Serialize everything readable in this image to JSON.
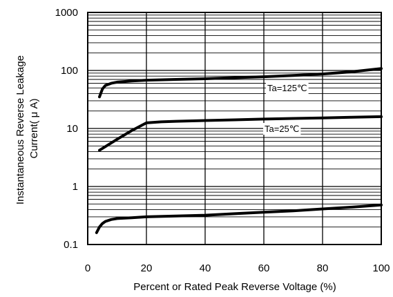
{
  "chart_data": {
    "type": "line",
    "title": "",
    "xlabel": "Percent or Rated Peak Reverse Voltage (%)",
    "ylabel_lines": [
      "Instantaneous Reverse Leakage",
      "Current( μ A)"
    ],
    "xlim": [
      0,
      100
    ],
    "ylim": [
      0.1,
      1000
    ],
    "yscale": "log",
    "grid": true,
    "x_ticks": [
      0,
      20,
      40,
      60,
      80,
      100
    ],
    "x_tick_labels": [
      "0",
      "20",
      "40",
      "60",
      "80",
      "100"
    ],
    "y_ticks": [
      0.1,
      1,
      10,
      100,
      1000
    ],
    "y_tick_labels": [
      "0.1",
      "1",
      "10",
      "100",
      "1000"
    ],
    "series": [
      {
        "name": "Ta=125℃",
        "x": [
          4,
          5,
          6,
          8,
          10,
          15,
          20,
          30,
          40,
          50,
          60,
          70,
          80,
          90,
          100
        ],
        "y": [
          35,
          48,
          55,
          60,
          63,
          66,
          68,
          70,
          72,
          75,
          78,
          82,
          87,
          95,
          108
        ]
      },
      {
        "name": "Ta=25℃",
        "x": [
          4,
          10,
          15,
          20,
          25,
          30,
          40,
          50,
          60,
          70,
          80,
          90,
          100
        ],
        "y": [
          4.2,
          6.5,
          9.2,
          12.5,
          13,
          13.3,
          13.7,
          14.1,
          14.5,
          14.9,
          15.2,
          15.6,
          16
        ]
      },
      {
        "name": "",
        "x": [
          3,
          4,
          5,
          6,
          8,
          10,
          15,
          20,
          30,
          40,
          50,
          60,
          70,
          80,
          90,
          100
        ],
        "y": [
          0.16,
          0.2,
          0.23,
          0.25,
          0.27,
          0.28,
          0.29,
          0.3,
          0.31,
          0.32,
          0.34,
          0.36,
          0.38,
          0.41,
          0.44,
          0.48
        ]
      }
    ],
    "annotations": [
      {
        "text": "Ta=125℃",
        "series": 0
      },
      {
        "text": "Ta=25℃",
        "series": 1
      }
    ]
  }
}
